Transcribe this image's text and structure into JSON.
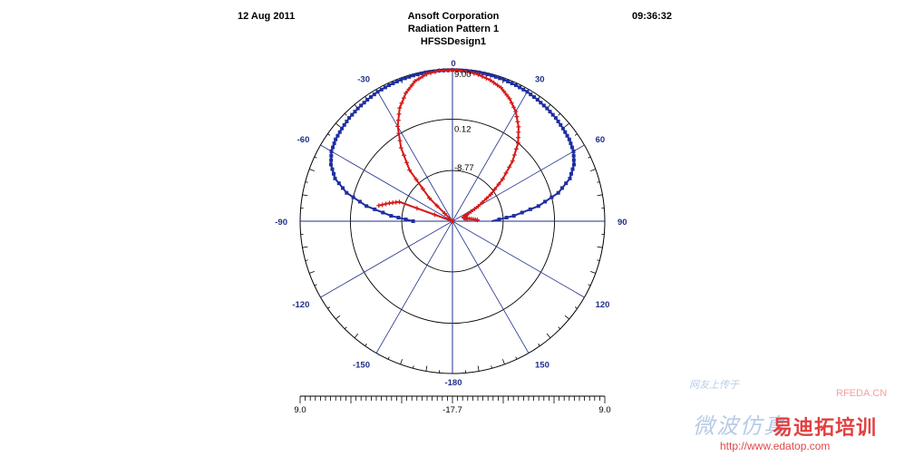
{
  "header": {
    "date": "12 Aug 2011",
    "company": "Ansoft Corporation",
    "plot_title": "Radiation Pattern 1",
    "design": "HFSSDesign1",
    "time": "09:36:32"
  },
  "watermark": {
    "line1": "网友上传于",
    "rfeda": "RFEDA.CN",
    "cn_left": "微波仿真",
    "cn_right": "易迪拓培训",
    "url": "http://www.edatop.com"
  },
  "chart_data": {
    "type": "polar",
    "title": "Radiation Pattern 1",
    "radial_range": [
      -17.7,
      9.0
    ],
    "ring_labels": [
      "9.00",
      "0.12",
      "-8.77"
    ],
    "ring_values": [
      9.0,
      0.12,
      -8.77
    ],
    "angle_labels": [
      "0",
      "30",
      "60",
      "90",
      "120",
      "150",
      "-180",
      "-150",
      "-120",
      "-90",
      "-60",
      "-30"
    ],
    "angle_values": [
      0,
      30,
      60,
      90,
      120,
      150,
      180,
      -150,
      -120,
      -90,
      -60,
      -30
    ],
    "scale_labels": {
      "left": "9.0",
      "center": "-17.7",
      "right": "9.0"
    },
    "grid": true,
    "colors": {
      "series1": "#1f2f9f",
      "series2": "#d41a1a",
      "grid": "#1f2f8c"
    },
    "series": [
      {
        "marker": "square",
        "color": "#1f2f9f",
        "theta_deg": [
          -90,
          -85,
          -80,
          -75,
          -70,
          -65,
          -60,
          -55,
          -50,
          -45,
          -40,
          -35,
          -30,
          -25,
          -20,
          -15,
          -10,
          -5,
          0,
          5,
          10,
          15,
          20,
          25,
          30,
          35,
          40,
          45,
          50,
          55,
          60,
          65,
          70,
          75,
          80,
          85,
          90
        ],
        "r_db": [
          -10.8,
          -6.9,
          -2.4,
          1.5,
          4.2,
          5.8,
          6.8,
          7.3,
          7.6,
          7.9,
          8.1,
          8.3,
          8.5,
          8.6,
          8.7,
          8.75,
          8.8,
          8.8,
          8.8,
          8.8,
          8.8,
          8.75,
          8.7,
          8.6,
          8.5,
          8.3,
          8.1,
          7.9,
          7.6,
          7.3,
          6.8,
          5.8,
          4.2,
          1.5,
          -2.4,
          -6.9,
          -10.8
        ]
      },
      {
        "marker": "plus",
        "color": "#d41a1a",
        "theta_deg": [
          -78,
          -74,
          -70,
          -66,
          -60,
          -55,
          -50,
          -45,
          -40,
          -35,
          -30,
          -25,
          -20,
          -15,
          -10,
          -5,
          0,
          5,
          10,
          15,
          20,
          25,
          30,
          35,
          40,
          45,
          50,
          55,
          60,
          65,
          70,
          75,
          80,
          85,
          88
        ],
        "r_db": [
          -4.5,
          -6.2,
          -7.8,
          -17.7,
          -17.7,
          -17.7,
          -17.7,
          -12,
          -6,
          -2,
          1.5,
          4.2,
          6.2,
          7.7,
          8.5,
          8.8,
          8.8,
          8.7,
          8.4,
          7.9,
          7.2,
          6.0,
          4.5,
          2.5,
          0.2,
          -2.8,
          -6.2,
          -9.5,
          -12.5,
          -14.8,
          -15.6,
          -15.6,
          -15.0,
          -14.0,
          -13.0
        ]
      }
    ]
  }
}
